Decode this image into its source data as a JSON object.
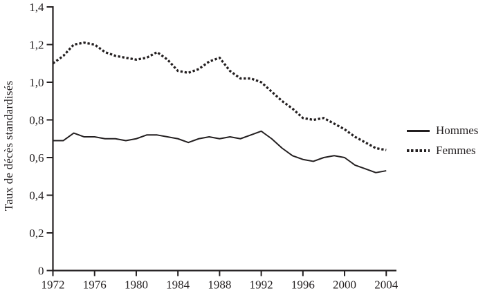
{
  "figure": {
    "background": "#ffffff",
    "ink_color": "#231f20"
  },
  "chart_data": {
    "type": "line",
    "title": "",
    "xlabel": "",
    "ylabel": "Taux de décès standardisés",
    "ylim": [
      0,
      1.4
    ],
    "xlim": [
      1972,
      2005
    ],
    "grid": false,
    "legend_position": "right",
    "decimal_separator": ",",
    "x": [
      1972,
      1973,
      1974,
      1975,
      1976,
      1977,
      1978,
      1979,
      1980,
      1981,
      1982,
      1983,
      1984,
      1985,
      1986,
      1987,
      1988,
      1989,
      1990,
      1991,
      1992,
      1993,
      1994,
      1995,
      1996,
      1997,
      1998,
      1999,
      2000,
      2001,
      2002,
      2003,
      2004
    ],
    "series": [
      {
        "name": "Hommes",
        "style": "solid",
        "color": "#231f20",
        "values": [
          0.69,
          0.69,
          0.73,
          0.71,
          0.71,
          0.7,
          0.7,
          0.69,
          0.7,
          0.72,
          0.72,
          0.71,
          0.7,
          0.68,
          0.7,
          0.71,
          0.7,
          0.71,
          0.7,
          0.72,
          0.74,
          0.7,
          0.65,
          0.61,
          0.59,
          0.58,
          0.6,
          0.61,
          0.6,
          0.56,
          0.54,
          0.52,
          0.53
        ]
      },
      {
        "name": "Femmes",
        "style": "dotted",
        "color": "#231f20",
        "values": [
          1.1,
          1.14,
          1.2,
          1.21,
          1.2,
          1.16,
          1.14,
          1.13,
          1.12,
          1.13,
          1.16,
          1.12,
          1.06,
          1.05,
          1.07,
          1.11,
          1.13,
          1.06,
          1.02,
          1.02,
          1.0,
          0.95,
          0.9,
          0.86,
          0.81,
          0.8,
          0.81,
          0.78,
          0.75,
          0.71,
          0.68,
          0.65,
          0.64
        ]
      }
    ],
    "y_ticks": [
      {
        "value": 1.4,
        "label": "1,4"
      },
      {
        "value": 1.2,
        "label": "1,2"
      },
      {
        "value": 1.0,
        "label": "1,0"
      },
      {
        "value": 0.8,
        "label": "0,8"
      },
      {
        "value": 0.6,
        "label": "0,6"
      },
      {
        "value": 0.4,
        "label": "0,4"
      },
      {
        "value": 0.2,
        "label": "0,2"
      },
      {
        "value": 0.0,
        "label": "0"
      }
    ],
    "x_ticks": [
      {
        "value": 1972,
        "label": "1972"
      },
      {
        "value": 1976,
        "label": "1976"
      },
      {
        "value": 1980,
        "label": "1980"
      },
      {
        "value": 1984,
        "label": "1984"
      },
      {
        "value": 1988,
        "label": "1988"
      },
      {
        "value": 1992,
        "label": "1992"
      },
      {
        "value": 1996,
        "label": "1996"
      },
      {
        "value": 2000,
        "label": "2000"
      },
      {
        "value": 2004,
        "label": "2004"
      }
    ]
  },
  "legend": {
    "items": [
      {
        "label": "Hommes",
        "style": "solid"
      },
      {
        "label": "Femmes",
        "style": "dotted"
      }
    ]
  }
}
